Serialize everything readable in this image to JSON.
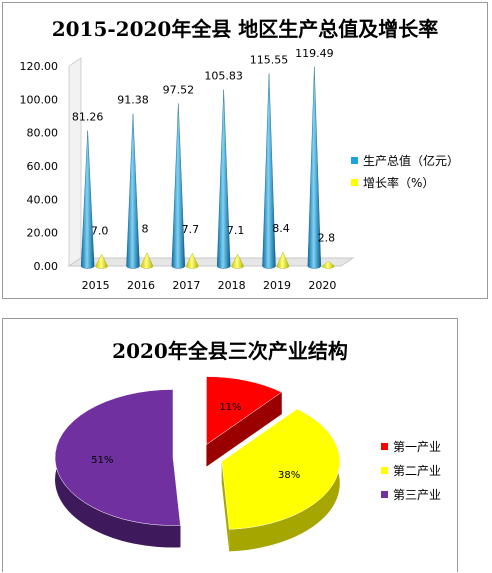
{
  "chart_data": [
    {
      "type": "bar",
      "title": "2015-2020年全县 地区生产总值及增长率",
      "categories": [
        "2015",
        "2016",
        "2017",
        "2018",
        "2019",
        "2020"
      ],
      "series": [
        {
          "name": "生产总值（亿元）",
          "values": [
            81.26,
            91.38,
            97.52,
            105.83,
            115.55,
            119.49
          ],
          "labels": [
            "81.26",
            "91.38",
            "97.52",
            "105.83",
            "115.55",
            "119.49"
          ],
          "color": "#1aa3dd"
        },
        {
          "name": "增长率（%）",
          "values": [
            7.0,
            8,
            7.7,
            7.1,
            8.4,
            2.8
          ],
          "labels": [
            "7.0",
            "8",
            "7.7",
            "7.1",
            "8.4",
            "2.8"
          ],
          "color": "#ffff00"
        }
      ],
      "yticks": [
        "0.00",
        "20.00",
        "40.00",
        "60.00",
        "80.00",
        "100.00",
        "120.00"
      ],
      "ylim": [
        0,
        120
      ],
      "grid": false,
      "legend_position": "right"
    },
    {
      "type": "pie",
      "title": "2020年全县三次产业结构",
      "categories": [
        "第一产业",
        "第二产业",
        "第三产业"
      ],
      "values": [
        11,
        38,
        51
      ],
      "labels": [
        "11%",
        "38%",
        "51%"
      ],
      "colors": [
        "#ff0000",
        "#ffff00",
        "#7030a0"
      ],
      "legend_position": "right"
    }
  ]
}
